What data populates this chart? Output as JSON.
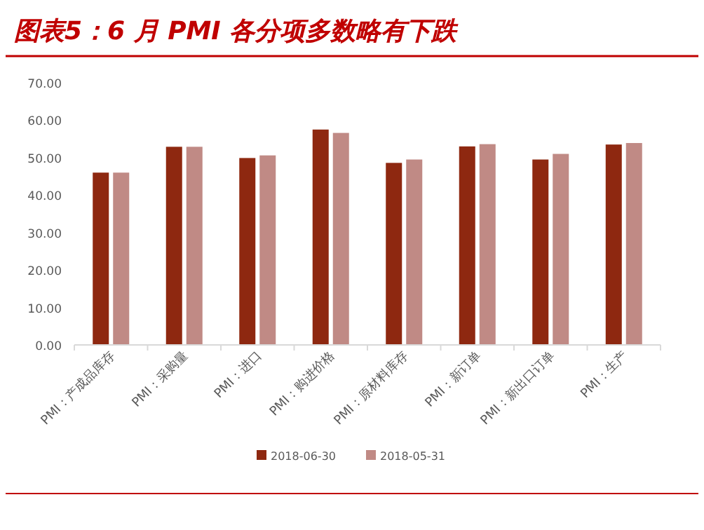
{
  "chart_data": {
    "type": "bar",
    "title": "图表5：6 月 PMI 各分项多数略有下跌",
    "categories": [
      "PMI：产成品库存",
      "PMI：采购量",
      "PMI：进口",
      "PMI：购进价格",
      "PMI：原材料库存",
      "PMI：新订单",
      "PMI：新出口订单",
      "PMI：生产"
    ],
    "series": [
      {
        "name": "2018-06-30",
        "color": "#8e2810",
        "values": [
          46.0,
          52.9,
          49.9,
          57.5,
          48.6,
          53.0,
          49.5,
          53.5
        ]
      },
      {
        "name": "2018-05-31",
        "color": "#c08a85",
        "values": [
          46.0,
          52.9,
          50.6,
          56.6,
          49.5,
          53.6,
          51.0,
          53.9
        ]
      }
    ],
    "ylim": [
      0,
      70
    ],
    "yticks": [
      {
        "value": 0,
        "label": "0.00"
      },
      {
        "value": 10,
        "label": "10.00"
      },
      {
        "value": 20,
        "label": "20.00"
      },
      {
        "value": 30,
        "label": "30.00"
      },
      {
        "value": 40,
        "label": "40.00"
      },
      {
        "value": 50,
        "label": "50.00"
      },
      {
        "value": 60,
        "label": "60.00"
      },
      {
        "value": 70,
        "label": "70.00"
      }
    ],
    "grid": false,
    "legend": "bottom"
  }
}
